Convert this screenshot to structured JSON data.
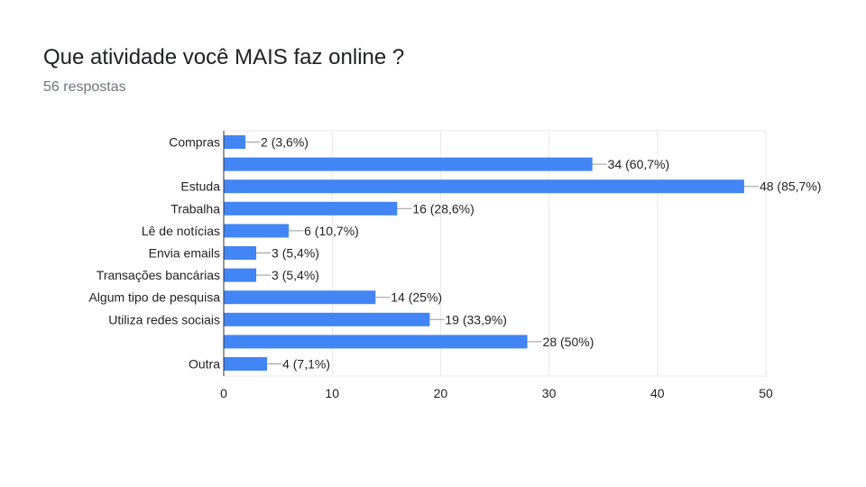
{
  "header": {
    "title": "Que atividade você MAIS faz online ?",
    "subtitle": "56 respostas"
  },
  "colors": {
    "bar": "#4285f4",
    "grid": "#e8e8e8",
    "leader": "#999999",
    "text": "#222222"
  },
  "chart_data": {
    "type": "bar",
    "orientation": "horizontal",
    "title": "Que atividade você MAIS faz online ?",
    "subtitle": "56 respostas",
    "categories": [
      "Compras",
      "",
      "Estuda",
      "Trabalha",
      "Lê de notícias",
      "Envia emails",
      "Transações bancárias",
      "Algum tipo de pesquisa",
      "Utiliza redes sociais",
      "",
      "Outra"
    ],
    "values": [
      2,
      34,
      48,
      16,
      6,
      3,
      3,
      14,
      19,
      28,
      4
    ],
    "data_labels": [
      "2 (3,6%)",
      "34 (60,7%)",
      "48 (85,7%)",
      "16 (28,6%)",
      "6 (10,7%)",
      "3 (5,4%)",
      "3 (5,4%)",
      "14 (25%)",
      "19 (33,9%)",
      "28 (50%)",
      "4 (7,1%)"
    ],
    "xlim": [
      0,
      50
    ],
    "xticks": [
      0,
      10,
      20,
      30,
      40,
      50
    ],
    "grid": true,
    "legend": "none"
  }
}
